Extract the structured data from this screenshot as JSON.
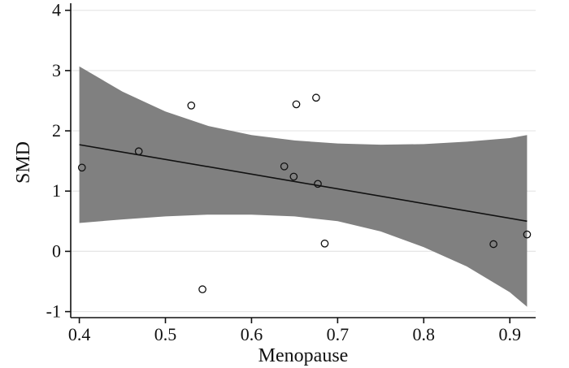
{
  "chart_data": {
    "type": "scatter",
    "xlabel": "Menopause",
    "ylabel": "SMD",
    "xlim": [
      0.39,
      0.93
    ],
    "ylim": [
      -1.1,
      4.05
    ],
    "xticks": [
      0.4,
      0.5,
      0.6,
      0.7,
      0.8,
      0.9
    ],
    "xtick_labels": [
      "0.4",
      "0.5",
      "0.6",
      "0.7",
      "0.8",
      "0.9"
    ],
    "yticks": [
      -1,
      0,
      1,
      2,
      3,
      4
    ],
    "ytick_labels": [
      "-1",
      "0",
      "1",
      "2",
      "3",
      "4"
    ],
    "grid": "horizontal",
    "points": [
      {
        "x": 0.403,
        "y": 1.39
      },
      {
        "x": 0.469,
        "y": 1.66
      },
      {
        "x": 0.53,
        "y": 2.42
      },
      {
        "x": 0.543,
        "y": -0.63
      },
      {
        "x": 0.638,
        "y": 1.41
      },
      {
        "x": 0.649,
        "y": 1.24
      },
      {
        "x": 0.652,
        "y": 2.44
      },
      {
        "x": 0.675,
        "y": 2.55
      },
      {
        "x": 0.677,
        "y": 1.12
      },
      {
        "x": 0.685,
        "y": 0.13
      },
      {
        "x": 0.881,
        "y": 0.12
      },
      {
        "x": 0.92,
        "y": 0.28
      }
    ],
    "fit_line": {
      "x": [
        0.4,
        0.92
      ],
      "y": [
        1.77,
        0.5
      ]
    },
    "confidence_band": {
      "x": [
        0.4,
        0.45,
        0.5,
        0.55,
        0.6,
        0.65,
        0.7,
        0.75,
        0.8,
        0.85,
        0.9,
        0.92
      ],
      "upper": [
        3.07,
        2.65,
        2.32,
        2.08,
        1.93,
        1.84,
        1.79,
        1.77,
        1.78,
        1.82,
        1.88,
        1.93
      ],
      "lower": [
        0.47,
        0.53,
        0.58,
        0.61,
        0.61,
        0.58,
        0.5,
        0.33,
        0.07,
        -0.25,
        -0.68,
        -0.92
      ]
    },
    "colors": {
      "band": "#808080",
      "line": "#111111",
      "points": "#111111",
      "grid": "#e6e6e6",
      "axes": "#111111"
    }
  }
}
